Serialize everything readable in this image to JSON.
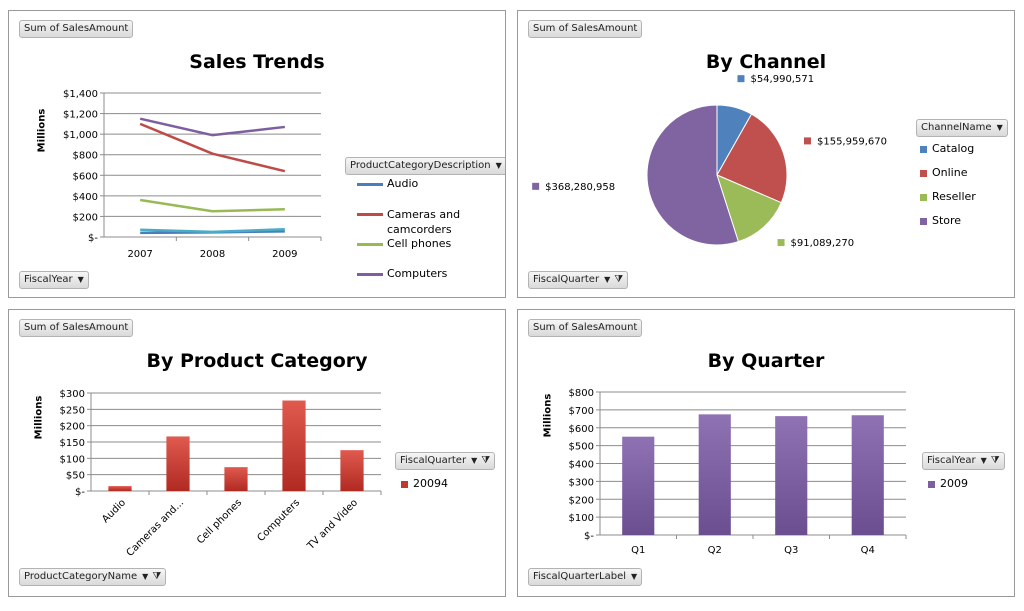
{
  "chart_data": [
    {
      "type": "line",
      "title": "Sales Trends",
      "ylabel": "Millions",
      "value_field": "Sum of SalesAmount",
      "axis_field": "FiscalYear",
      "legend_field": "ProductCategoryDescription",
      "x": [
        "2007",
        "2008",
        "2009"
      ],
      "ylim": [
        0,
        1400
      ],
      "yticks": [
        "$-",
        "$200",
        "$400",
        "$600",
        "$800",
        "$1,000",
        "$1,200",
        "$1,400"
      ],
      "grid": true,
      "legend": "right",
      "series": [
        {
          "name": "Audio",
          "color": "#4a7ebb",
          "values": [
            40,
            45,
            55
          ]
        },
        {
          "name": "Cameras and camcorders",
          "color": "#be4b48",
          "values": [
            1100,
            810,
            640
          ]
        },
        {
          "name": "Cell phones",
          "color": "#98b954",
          "values": [
            360,
            250,
            270
          ]
        },
        {
          "name": "Computers",
          "color": "#7d5fa0",
          "values": [
            1150,
            990,
            1070
          ]
        },
        {
          "name": "",
          "color": "#4bacc6",
          "values": [
            70,
            50,
            75
          ]
        }
      ]
    },
    {
      "type": "pie",
      "title": "By Channel",
      "value_field": "Sum of SalesAmount",
      "legend_field": "ChannelName",
      "filter_field": "FiscalQuarter",
      "legend": "right",
      "slices": [
        {
          "name": "Catalog",
          "value": 54990571,
          "label": "$54,990,571",
          "color": "#4f81bd"
        },
        {
          "name": "Online",
          "value": 155959670,
          "label": "$155,959,670",
          "color": "#c0504d"
        },
        {
          "name": "Reseller",
          "value": 91089270,
          "label": "$91,089,270",
          "color": "#9bbb59"
        },
        {
          "name": "Store",
          "value": 368280958,
          "label": "$368,280,958",
          "color": "#8064a2"
        }
      ]
    },
    {
      "type": "bar",
      "title": "By Product Category",
      "ylabel": "Millions",
      "value_field": "Sum of SalesAmount",
      "axis_field": "ProductCategoryName",
      "legend_field": "FiscalQuarter",
      "categories": [
        "Audio",
        "Cameras and...",
        "Cell phones",
        "Computers",
        "TV and Video"
      ],
      "series": [
        {
          "name": "20094",
          "color": "#c0392b",
          "values": [
            15,
            167,
            73,
            277,
            125
          ]
        }
      ],
      "ylim": [
        0,
        300
      ],
      "yticks": [
        "$-",
        "$50",
        "$100",
        "$150",
        "$200",
        "$250",
        "$300"
      ],
      "grid": true,
      "legend": "right"
    },
    {
      "type": "bar",
      "title": "By Quarter",
      "ylabel": "Millions",
      "value_field": "Sum of SalesAmount",
      "axis_field": "FiscalQuarterLabel",
      "legend_field": "FiscalYear",
      "categories": [
        "Q1",
        "Q2",
        "Q3",
        "Q4"
      ],
      "series": [
        {
          "name": "2009",
          "color": "#7d5fa0",
          "values": [
            550,
            675,
            665,
            670
          ]
        }
      ],
      "ylim": [
        0,
        800
      ],
      "yticks": [
        "$-",
        "$100",
        "$200",
        "$300",
        "$400",
        "$500",
        "$600",
        "$700",
        "$800"
      ],
      "grid": true,
      "legend": "right"
    }
  ]
}
